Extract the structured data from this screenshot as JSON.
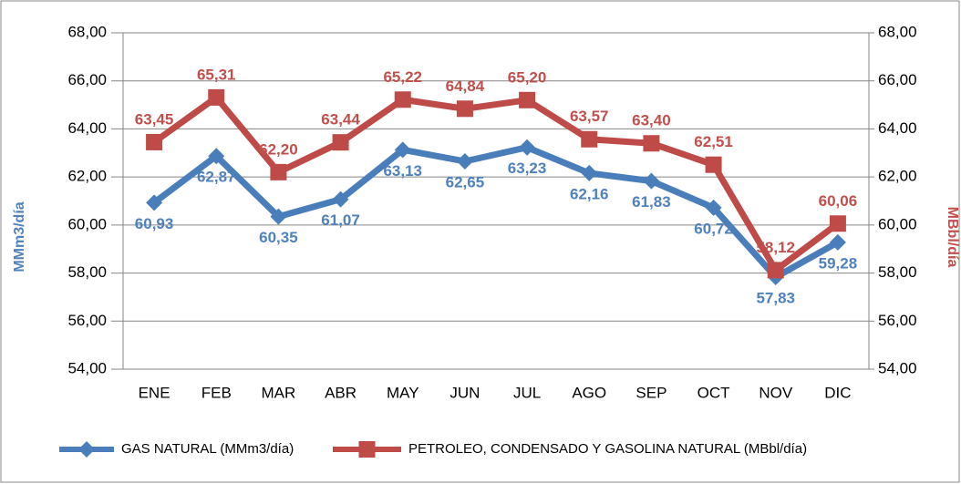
{
  "chart_data": {
    "type": "line",
    "categories": [
      "ENE",
      "FEB",
      "MAR",
      "ABR",
      "MAY",
      "JUN",
      "JUL",
      "AGO",
      "SEP",
      "OCT",
      "NOV",
      "DIC"
    ],
    "series": [
      {
        "name": "GAS NATURAL (MMm3/día)",
        "color": "#4a7ebb",
        "label_color": "#4f81bd",
        "marker": "diamond",
        "axis": "y",
        "values": [
          60.93,
          62.87,
          60.35,
          61.07,
          63.13,
          62.65,
          63.23,
          62.16,
          61.83,
          60.72,
          57.83,
          59.28
        ],
        "value_labels": [
          "60,93",
          "62,87",
          "60,35",
          "61,07",
          "63,13",
          "62,65",
          "63,23",
          "62,16",
          "61,83",
          "60,72",
          "57,83",
          "59,28"
        ]
      },
      {
        "name": "PETROLEO, CONDENSADO Y GASOLINA NATURAL (MBbl/día)",
        "color": "#be4b48",
        "label_color": "#c0504d",
        "marker": "square",
        "axis": "y2",
        "values": [
          63.45,
          65.31,
          62.2,
          63.44,
          65.22,
          64.84,
          65.2,
          63.57,
          63.4,
          62.51,
          58.12,
          60.06
        ],
        "value_labels": [
          "63,45",
          "65,31",
          "62,20",
          "63,44",
          "65,22",
          "64,84",
          "65,20",
          "63,57",
          "63,40",
          "62,51",
          "58,12",
          "60,06"
        ]
      }
    ],
    "y_label": "MMm3/día",
    "y2_label": "MBbl/día",
    "ylim": [
      54,
      68
    ],
    "yticks": [
      {
        "value": 54,
        "label": "54,00"
      },
      {
        "value": 56,
        "label": "56,00"
      },
      {
        "value": 58,
        "label": "58,00"
      },
      {
        "value": 60,
        "label": "60,00"
      },
      {
        "value": 62,
        "label": "62,00"
      },
      {
        "value": 64,
        "label": "64,00"
      },
      {
        "value": 66,
        "label": "66,00"
      },
      {
        "value": 68,
        "label": "68,00"
      }
    ],
    "y2lim": [
      54,
      68
    ],
    "y2ticks": [
      {
        "value": 54,
        "label": "54,00"
      },
      {
        "value": 56,
        "label": "56,00"
      },
      {
        "value": 58,
        "label": "58,00"
      },
      {
        "value": 60,
        "label": "60,00"
      },
      {
        "value": 62,
        "label": "62,00"
      },
      {
        "value": 64,
        "label": "64,00"
      },
      {
        "value": 66,
        "label": "66,00"
      },
      {
        "value": 68,
        "label": "68,00"
      }
    ],
    "grid": true
  }
}
